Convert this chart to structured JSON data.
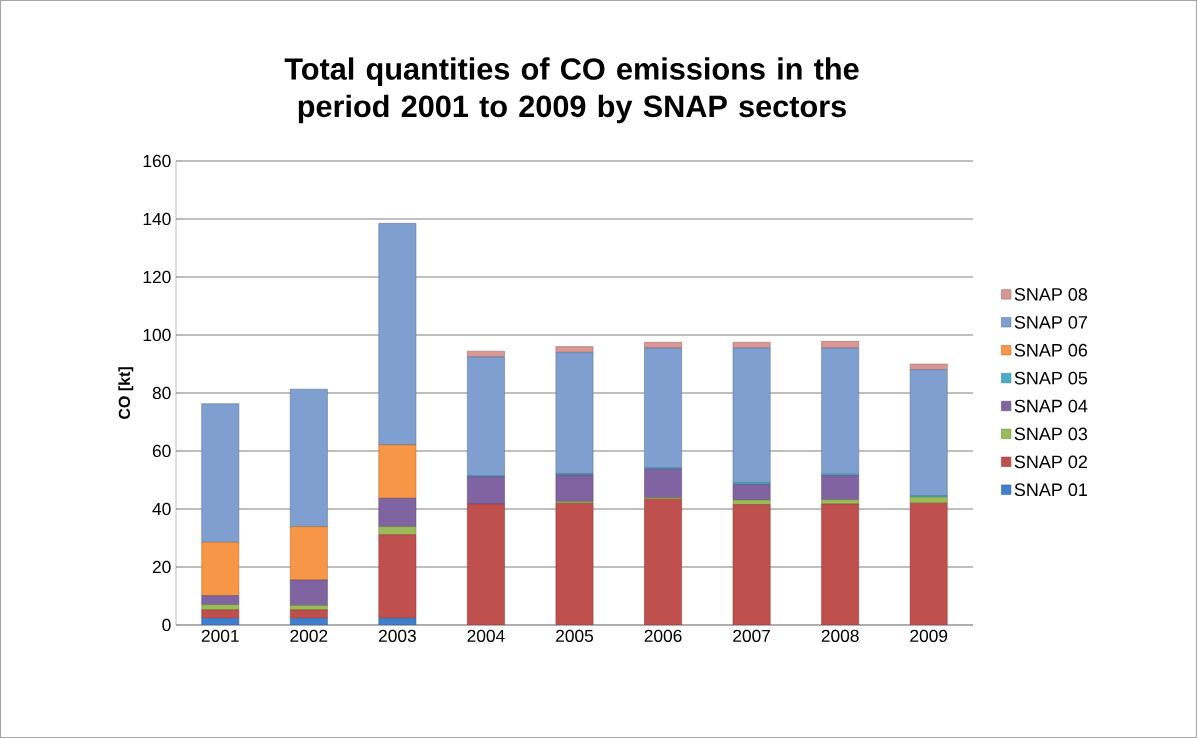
{
  "chart_data": {
    "type": "bar",
    "stacked": true,
    "title": "Total quantities of CO emissions in the period 2001 to 2009 by SNAP sectors",
    "ylabel": "CO [kt]",
    "categories": [
      "2001",
      "2002",
      "2003",
      "2004",
      "2005",
      "2006",
      "2007",
      "2008",
      "2009"
    ],
    "ylim": [
      0,
      160
    ],
    "yticks": [
      0,
      20,
      40,
      60,
      80,
      100,
      120,
      140,
      160
    ],
    "grid": "y",
    "legend": "right",
    "series": [
      {
        "name": "SNAP 01",
        "color": "#3f7fcf",
        "values": [
          2.3,
          2.3,
          2.3,
          0,
          0,
          0,
          0,
          0,
          0
        ]
      },
      {
        "name": "SNAP 02",
        "color": "#c0504d",
        "values": [
          2.9,
          2.9,
          28.8,
          41.7,
          42.0,
          43.4,
          41.5,
          41.7,
          42.0
        ]
      },
      {
        "name": "SNAP 03",
        "color": "#9bbb59",
        "values": [
          1.8,
          1.5,
          2.8,
          null,
          0.6,
          0.5,
          1.6,
          1.5,
          2.1
        ]
      },
      {
        "name": "SNAP 04",
        "color": "#8064a2",
        "values": [
          3.1,
          8.8,
          9.8,
          9.4,
          9.1,
          9.8,
          5.3,
          8.3,
          0
        ]
      },
      {
        "name": "SNAP 05",
        "color": "#4bacc6",
        "values": [
          0,
          0,
          0,
          0.3,
          0.4,
          0.4,
          0.6,
          0.5,
          0.5
        ]
      },
      {
        "name": "SNAP 06",
        "color": "#f79646",
        "values": [
          18.4,
          18.4,
          18.4,
          0,
          0,
          0,
          0,
          0,
          0
        ]
      },
      {
        "name": "SNAP 07",
        "color": "#7f9fd0",
        "values": [
          47.8,
          47.4,
          76.4,
          41.0,
          41.9,
          41.4,
          46.5,
          43.5,
          43.4
        ]
      },
      {
        "name": "SNAP 08",
        "color": "#d99694",
        "values": [
          0,
          0,
          0,
          2.0,
          2.0,
          2.0,
          2.0,
          2.3,
          2.0
        ]
      }
    ]
  }
}
